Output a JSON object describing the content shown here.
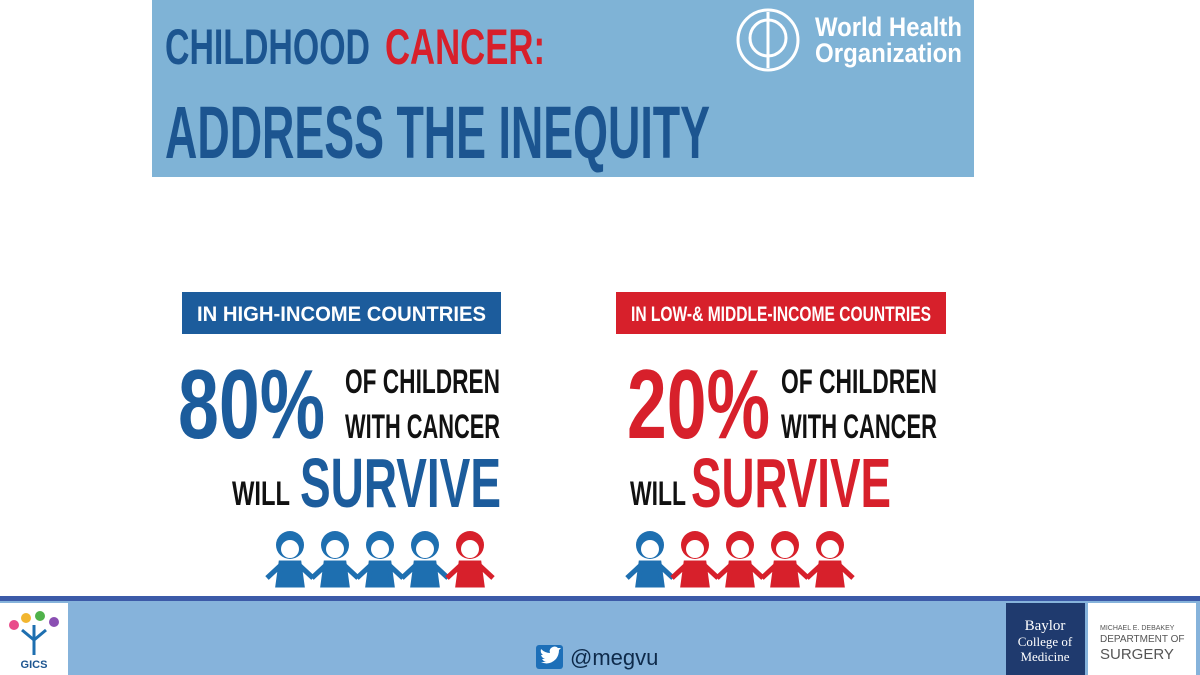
{
  "header": {
    "title_part1": "CHILDHOOD",
    "title_part2": "CANCER:",
    "title_line2": "ADDRESS THE INEQUITY",
    "logo_line1": "World Health",
    "logo_line2": "Organization"
  },
  "panels": [
    {
      "label": "IN HIGH-INCOME COUNTRIES",
      "percent": "80%",
      "line1": "OF CHILDREN",
      "line2": "WITH CANCER",
      "will": "WILL",
      "survive": "SURVIVE",
      "color": "#1c5c9c",
      "children": [
        "#1e6fb0",
        "#1e6fb0",
        "#1e6fb0",
        "#1e6fb0",
        "#d7202b"
      ]
    },
    {
      "label": "IN LOW-& MIDDLE-INCOME COUNTRIES",
      "percent": "20%",
      "line1": "OF CHILDREN",
      "line2": "WITH CANCER",
      "will": "WILL",
      "survive": "SURVIVE",
      "color": "#d7202b",
      "children": [
        "#1e6fb0",
        "#d7202b",
        "#d7202b",
        "#d7202b",
        "#d7202b"
      ]
    }
  ],
  "footer": {
    "handle": "@megvu",
    "gics": "GICS",
    "baylor_line1": "Baylor",
    "baylor_line2": "College of",
    "baylor_line3": "Medicine",
    "dept_line1": "MICHAEL E. DEBAKEY",
    "dept_line2": "DEPARTMENT OF",
    "dept_line3": "SURGERY"
  }
}
